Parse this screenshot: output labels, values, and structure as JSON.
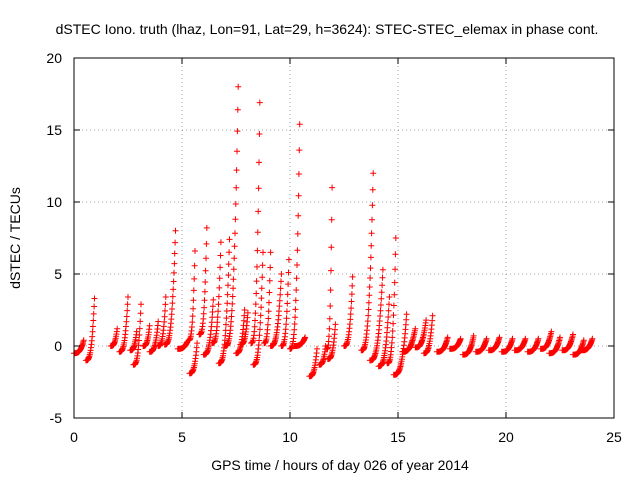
{
  "chart_data": {
    "type": "scatter",
    "title": "dSTEC Iono. truth (lhaz, Lon=91, Lat=29, h=3624): STEC-STEC_elemax in phase cont.",
    "xlabel": "GPS time / hours of day 026 of year 2014",
    "ylabel": "dSTEC  / TECUs",
    "xlim": [
      0,
      25
    ],
    "ylim": [
      -5,
      20
    ],
    "xticks": [
      0,
      5,
      10,
      15,
      20,
      25
    ],
    "yticks": [
      -5,
      0,
      5,
      10,
      15,
      20
    ],
    "grid": true,
    "marker": "+",
    "color": "#ff0000",
    "series": [
      {
        "name": "dSTEC",
        "arcs": [
          [
            0.0,
            -0.5,
            0.45,
            0.4
          ],
          [
            0.55,
            -1.0,
            0.95,
            3.3
          ],
          [
            1.7,
            0.0,
            2.0,
            1.2
          ],
          [
            2.1,
            -0.4,
            2.5,
            3.4
          ],
          [
            2.6,
            -0.3,
            2.9,
            1.0
          ],
          [
            2.75,
            -1.3,
            3.1,
            2.9
          ],
          [
            3.2,
            0.0,
            3.5,
            1.4
          ],
          [
            3.5,
            -0.4,
            3.9,
            1.7
          ],
          [
            3.9,
            0.0,
            4.25,
            3.4
          ],
          [
            4.2,
            0.1,
            4.7,
            8.0
          ],
          [
            4.8,
            -0.2,
            5.25,
            0.3
          ],
          [
            5.3,
            0.4,
            5.6,
            6.6
          ],
          [
            5.35,
            -1.9,
            5.7,
            0.2
          ],
          [
            5.8,
            0.8,
            6.15,
            8.2
          ],
          [
            6.0,
            -0.6,
            6.45,
            3.2
          ],
          [
            6.4,
            0.2,
            6.8,
            7.2
          ],
          [
            6.7,
            -1.2,
            7.2,
            7.4
          ],
          [
            7.0,
            0.0,
            7.6,
            18.0
          ],
          [
            7.5,
            -0.5,
            7.9,
            2.5
          ],
          [
            7.7,
            0.1,
            8.05,
            2.3
          ],
          [
            8.2,
            0.2,
            8.6,
            16.9
          ],
          [
            8.3,
            -1.3,
            8.75,
            6.5
          ],
          [
            8.8,
            0.2,
            9.1,
            6.5
          ],
          [
            9.1,
            0.0,
            9.6,
            5.0
          ],
          [
            9.6,
            0.0,
            9.95,
            6.0
          ],
          [
            10.0,
            -0.2,
            10.45,
            15.4
          ],
          [
            10.2,
            0.0,
            10.7,
            0.6
          ],
          [
            10.9,
            -2.1,
            11.25,
            -0.2
          ],
          [
            11.35,
            -1.3,
            11.65,
            0.0
          ],
          [
            11.7,
            -0.2,
            11.95,
            11.0
          ],
          [
            11.75,
            -0.9,
            12.1,
            1.5
          ],
          [
            12.5,
            0.0,
            12.9,
            4.8
          ],
          [
            13.3,
            -0.3,
            13.85,
            12.0
          ],
          [
            13.7,
            -1.0,
            14.3,
            5.3
          ],
          [
            14.1,
            -1.4,
            14.6,
            3.4
          ],
          [
            14.5,
            -1.2,
            14.9,
            7.5
          ],
          [
            14.8,
            -2.0,
            15.4,
            2.2
          ],
          [
            15.2,
            -0.4,
            15.8,
            1.2
          ],
          [
            15.8,
            -0.1,
            16.3,
            1.8
          ],
          [
            16.2,
            -0.5,
            16.6,
            2.1
          ],
          [
            16.8,
            -0.4,
            17.3,
            0.6
          ],
          [
            17.4,
            -0.2,
            17.9,
            0.5
          ],
          [
            18.0,
            -0.6,
            18.5,
            0.7
          ],
          [
            18.6,
            -0.4,
            19.1,
            0.5
          ],
          [
            19.2,
            -0.3,
            19.7,
            0.6
          ],
          [
            19.8,
            -0.4,
            20.3,
            0.5
          ],
          [
            20.4,
            -0.3,
            20.9,
            0.5
          ],
          [
            21.0,
            -0.4,
            21.5,
            0.5
          ],
          [
            21.6,
            -0.2,
            22.1,
            1.0
          ],
          [
            22.0,
            -0.5,
            22.5,
            0.6
          ],
          [
            22.6,
            -0.3,
            23.1,
            0.8
          ],
          [
            23.1,
            -0.6,
            23.6,
            0.4
          ],
          [
            23.5,
            -0.3,
            24.0,
            0.5
          ]
        ]
      }
    ]
  }
}
